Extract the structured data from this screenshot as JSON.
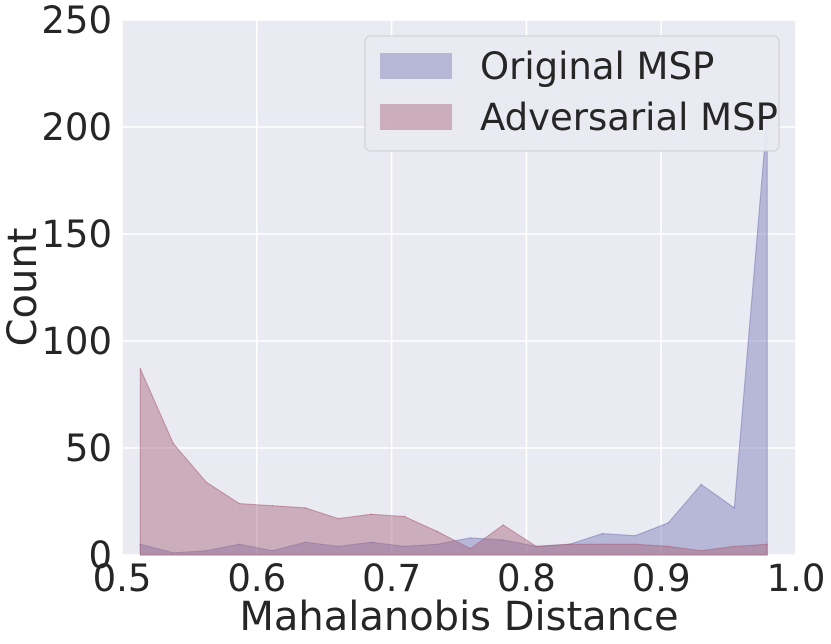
{
  "chart_data": {
    "type": "area",
    "xlabel": "Mahalanobis Distance",
    "ylabel": "Count",
    "xlim": [
      0.5,
      1.0
    ],
    "ylim": [
      0,
      250
    ],
    "xticks": [
      "0.5",
      "0.6",
      "0.7",
      "0.8",
      "0.9",
      "1.0"
    ],
    "yticks": [
      "0",
      "50",
      "100",
      "150",
      "200",
      "250"
    ],
    "grid": true,
    "legend_position": "top-right",
    "series": [
      {
        "name": "Original MSP",
        "color": "#7a7bb5",
        "x": [
          0.5136,
          0.5381,
          0.5625,
          0.587,
          0.6115,
          0.636,
          0.6605,
          0.6849,
          0.7094,
          0.7339,
          0.7584,
          0.7828,
          0.8073,
          0.8318,
          0.8563,
          0.8807,
          0.9052,
          0.9297,
          0.9542,
          0.9786
        ],
        "values": [
          5,
          1,
          2,
          5,
          2,
          6,
          4,
          6,
          4,
          5,
          8,
          7,
          4,
          5,
          10,
          9,
          15,
          33,
          22,
          205
        ]
      },
      {
        "name": "Adversarial MSP",
        "color": "#a9637a",
        "x": [
          0.5136,
          0.5381,
          0.5625,
          0.587,
          0.6115,
          0.636,
          0.6605,
          0.6849,
          0.7094,
          0.7339,
          0.7584,
          0.7828,
          0.8073,
          0.8318,
          0.8563,
          0.8807,
          0.9052,
          0.9297,
          0.9542,
          0.9786
        ],
        "values": [
          87,
          52,
          34,
          24,
          23,
          22,
          17,
          19,
          18,
          11,
          3,
          14,
          4,
          5,
          5,
          5,
          4,
          2,
          4,
          5
        ]
      }
    ]
  }
}
